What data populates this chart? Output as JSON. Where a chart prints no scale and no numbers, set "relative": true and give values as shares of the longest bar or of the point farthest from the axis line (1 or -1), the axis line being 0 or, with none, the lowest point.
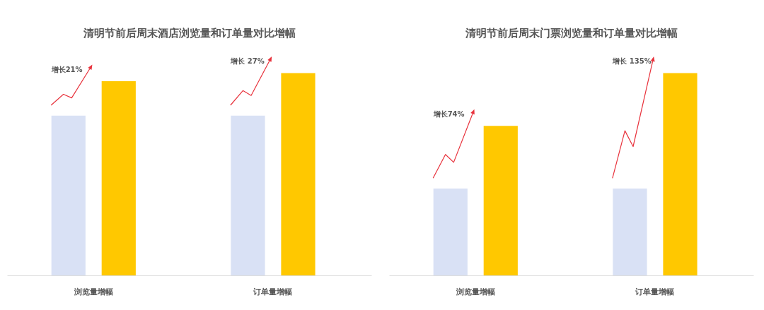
{
  "chart_data": [
    {
      "type": "bar",
      "title": "清明节前后周末酒店浏览量和订单量对比增幅",
      "categories": [
        "浏览量增幅",
        "订单量增幅"
      ],
      "relative": true,
      "series": [
        {
          "color": "#d9e1f5",
          "values": [
            0.79,
            0.79
          ]
        },
        {
          "color": "#ffc800",
          "values": [
            0.96,
            1
          ]
        }
      ],
      "annotations": [
        "增长21%",
        "增长 27%"
      ]
    },
    {
      "type": "bar",
      "title": "清明节前后周末门票浏览量和订单量对比增幅",
      "categories": [
        "浏览量增幅",
        "订单量增幅"
      ],
      "relative": true,
      "series": [
        {
          "color": "#d9e1f5",
          "values": [
            0.43,
            0.43
          ]
        },
        {
          "color": "#ffc800",
          "values": [
            0.74,
            1
          ]
        }
      ],
      "annotations": [
        "增长74%",
        "增长 135%"
      ]
    }
  ]
}
